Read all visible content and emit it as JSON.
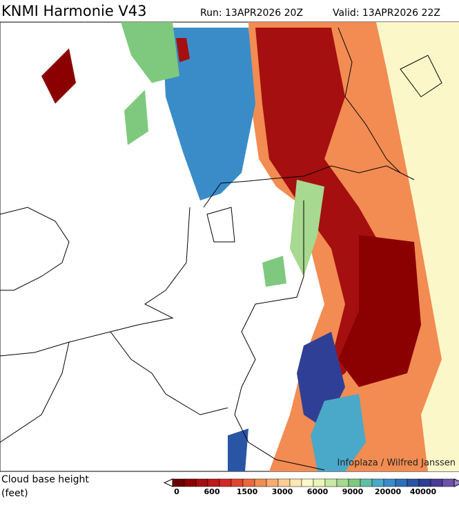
{
  "header": {
    "title": "KNMI Harmonie V43",
    "run": "Run: 13APR2026 20Z",
    "valid": "Valid: 13APR2026 22Z"
  },
  "map": {
    "credit": "Infoplaza / Wilfred Janssen"
  },
  "legend": {
    "title_line1": "Cloud base height",
    "title_line2": "(feet)",
    "tick_labels": [
      "0",
      "600",
      "1500",
      "3000",
      "6000",
      "9000",
      "20000",
      "40000"
    ]
  }
}
